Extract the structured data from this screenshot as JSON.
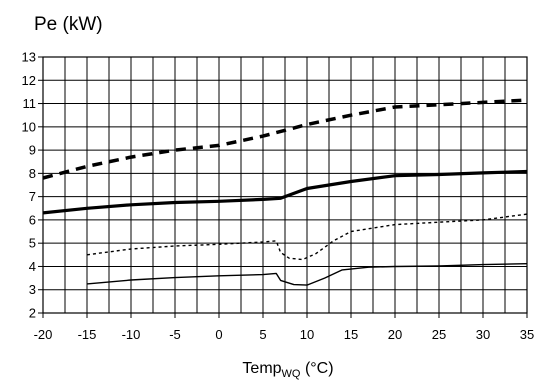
{
  "chart_data": {
    "type": "line",
    "title": "Pe (kW)",
    "xlabel": {
      "main": "Temp",
      "sub": "WQ",
      "unit": " (°C)"
    },
    "ylabel": "",
    "xlim": [
      -20,
      35
    ],
    "ylim": [
      2,
      13
    ],
    "x_ticks": [
      -20,
      -15,
      -10,
      -5,
      0,
      5,
      10,
      15,
      20,
      25,
      30,
      35
    ],
    "y_ticks": [
      2,
      3,
      4,
      5,
      6,
      7,
      8,
      9,
      10,
      11,
      12,
      13
    ],
    "x_minor_step": 2.5,
    "y_minor_step": 1,
    "grid": true,
    "series": [
      {
        "style": "thick-dashed",
        "color": "#000000",
        "points": [
          [
            -20,
            7.8
          ],
          [
            -15,
            8.3
          ],
          [
            -10,
            8.7
          ],
          [
            -5,
            9.0
          ],
          [
            0,
            9.2
          ],
          [
            5,
            9.6
          ],
          [
            10,
            10.1
          ],
          [
            15,
            10.5
          ],
          [
            20,
            10.85
          ],
          [
            25,
            10.95
          ],
          [
            30,
            11.05
          ],
          [
            35,
            11.15
          ]
        ]
      },
      {
        "style": "thick-solid",
        "color": "#000000",
        "points": [
          [
            -20,
            6.3
          ],
          [
            -15,
            6.5
          ],
          [
            -10,
            6.65
          ],
          [
            -5,
            6.75
          ],
          [
            0,
            6.8
          ],
          [
            5,
            6.88
          ],
          [
            7,
            6.93
          ],
          [
            10,
            7.35
          ],
          [
            15,
            7.65
          ],
          [
            20,
            7.9
          ],
          [
            25,
            7.95
          ],
          [
            30,
            8.02
          ],
          [
            35,
            8.08
          ]
        ]
      },
      {
        "style": "thin-dotted",
        "color": "#000000",
        "points": [
          [
            -15,
            4.5
          ],
          [
            -10,
            4.75
          ],
          [
            -5,
            4.88
          ],
          [
            0,
            4.95
          ],
          [
            5,
            5.05
          ],
          [
            6.5,
            5.1
          ],
          [
            7,
            4.6
          ],
          [
            8,
            4.35
          ],
          [
            9.5,
            4.3
          ],
          [
            11,
            4.55
          ],
          [
            13,
            5.1
          ],
          [
            15,
            5.5
          ],
          [
            20,
            5.8
          ],
          [
            25,
            5.9
          ],
          [
            30,
            6.0
          ],
          [
            35,
            6.25
          ]
        ]
      },
      {
        "style": "thin-solid",
        "color": "#000000",
        "points": [
          [
            -15,
            3.25
          ],
          [
            -10,
            3.42
          ],
          [
            -5,
            3.52
          ],
          [
            0,
            3.6
          ],
          [
            5,
            3.65
          ],
          [
            6.5,
            3.7
          ],
          [
            7,
            3.4
          ],
          [
            8.5,
            3.22
          ],
          [
            10,
            3.2
          ],
          [
            12,
            3.5
          ],
          [
            14,
            3.85
          ],
          [
            17,
            3.97
          ],
          [
            20,
            4.0
          ],
          [
            25,
            4.02
          ],
          [
            30,
            4.08
          ],
          [
            35,
            4.12
          ]
        ]
      }
    ]
  }
}
